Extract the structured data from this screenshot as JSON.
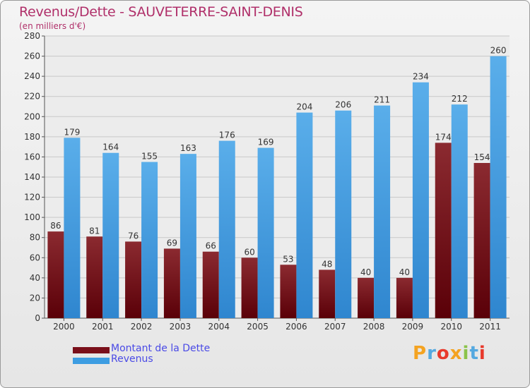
{
  "title": "Revenus/Dette - SAUVETERRE-SAINT-DENIS",
  "subtitle": "(en milliers d'€)",
  "legend": [
    {
      "label": "Montant de la Dette",
      "color": "#7a0f1a"
    },
    {
      "label": "Revenus",
      "color": "#3d9de2"
    }
  ],
  "logo": {
    "text": "Proxiti",
    "colors": [
      "#f4a321",
      "#55a9e0",
      "#e8392b",
      "#f4a321",
      "#8bc34a",
      "#55a9e0",
      "#e8392b"
    ]
  },
  "chart_data": {
    "type": "bar",
    "title": "Revenus/Dette - SAUVETERRE-SAINT-DENIS",
    "subtitle": "(en milliers d'€)",
    "categories": [
      "2000",
      "2001",
      "2002",
      "2003",
      "2004",
      "2005",
      "2006",
      "2007",
      "2008",
      "2009",
      "2010",
      "2011"
    ],
    "series": [
      {
        "name": "Montant de la Dette",
        "color": "#7a0f1a",
        "values": [
          86,
          81,
          76,
          69,
          66,
          60,
          53,
          48,
          40,
          40,
          174,
          154
        ]
      },
      {
        "name": "Revenus",
        "color": "#3d9de2",
        "values": [
          179,
          164,
          155,
          163,
          176,
          169,
          204,
          206,
          211,
          234,
          212,
          260
        ]
      }
    ],
    "ylim": [
      0,
      280
    ],
    "yticks": [
      0,
      20,
      40,
      60,
      80,
      100,
      120,
      140,
      160,
      180,
      200,
      220,
      240,
      260,
      280
    ],
    "grid": true,
    "legend_position": "bottom-left"
  }
}
